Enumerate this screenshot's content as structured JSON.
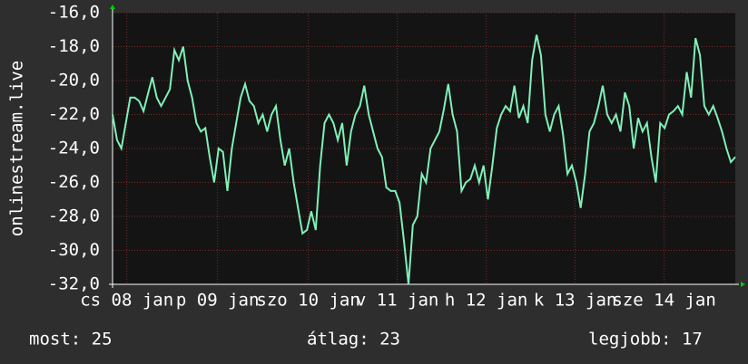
{
  "chart_data": {
    "type": "line",
    "y_axis_label": "onlinestream.live",
    "color": "#7ff0b8",
    "ylim": [
      -32,
      -16
    ],
    "yticks": [
      {
        "value": -16,
        "label": "-16,0"
      },
      {
        "value": -18,
        "label": "-18,0"
      },
      {
        "value": -20,
        "label": "-20,0"
      },
      {
        "value": -22,
        "label": "-22,0"
      },
      {
        "value": -24,
        "label": "-24,0"
      },
      {
        "value": -26,
        "label": "-26,0"
      },
      {
        "value": -28,
        "label": "-28,0"
      },
      {
        "value": -30,
        "label": "-30,0"
      },
      {
        "value": -32,
        "label": "-32,0"
      }
    ],
    "xlim": [
      0,
      7
    ],
    "xticks": [
      {
        "value": 0.16,
        "label": "cs 08 jan"
      },
      {
        "value": 1.18,
        "label": "p 09 jan"
      },
      {
        "value": 2.2,
        "label": "szo 10 jan"
      },
      {
        "value": 3.2,
        "label": "v 11 jan"
      },
      {
        "value": 4.2,
        "label": "h 12 jan"
      },
      {
        "value": 5.2,
        "label": "k 13 jan"
      },
      {
        "value": 6.2,
        "label": "sze 14 jan"
      }
    ],
    "grid": true,
    "values": [
      -22,
      -23.5,
      -24,
      -22.5,
      -21,
      -21,
      -21.2,
      -21.8,
      -20.8,
      -19.8,
      -21,
      -21.5,
      -21,
      -20.5,
      -18.2,
      -18.8,
      -18,
      -20,
      -21,
      -22.5,
      -23,
      -22.8,
      -24.5,
      -26,
      -24,
      -24.2,
      -26.5,
      -24,
      -22.5,
      -21,
      -20.2,
      -21.2,
      -21.5,
      -22.5,
      -22,
      -23,
      -22,
      -21.5,
      -23.5,
      -25,
      -24,
      -26,
      -27.5,
      -29,
      -28.8,
      -27.7,
      -28.8,
      -25,
      -22.5,
      -22,
      -22.5,
      -23.5,
      -22.5,
      -25,
      -23,
      -22,
      -21.5,
      -20.3,
      -22,
      -23,
      -24,
      -24.5,
      -26.3,
      -26.5,
      -26.5,
      -27.2,
      -29.5,
      -32,
      -28.5,
      -28,
      -25.5,
      -26,
      -24,
      -23.5,
      -23,
      -21.7,
      -20.2,
      -22,
      -23,
      -26.5,
      -26,
      -25.8,
      -25,
      -26,
      -25,
      -27,
      -25,
      -22.8,
      -22,
      -21.5,
      -21.8,
      -20.3,
      -22.2,
      -21.5,
      -22.5,
      -18.8,
      -17.3,
      -18.5,
      -22,
      -23,
      -22,
      -21.5,
      -23.2,
      -25.5,
      -25,
      -26,
      -27.5,
      -25.5,
      -23,
      -22.5,
      -21.5,
      -20.3,
      -22,
      -22.5,
      -22,
      -23,
      -20.7,
      -21.5,
      -24,
      -22.2,
      -23,
      -22.5,
      -24.5,
      -26,
      -22.5,
      -22.8,
      -22,
      -21.8,
      -21.5,
      -22,
      -19.5,
      -21,
      -17.5,
      -18.5,
      -21.5,
      -22,
      -21.5,
      -22.2,
      -23,
      -24,
      -24.8,
      -24.5
    ]
  },
  "stats": {
    "current": "most: 25",
    "average": "átlag: 23",
    "best": "legjobb: 17"
  }
}
